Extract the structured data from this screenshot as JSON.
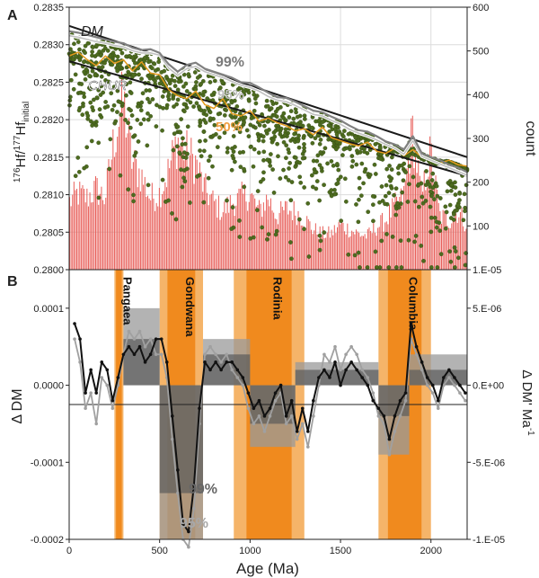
{
  "panel_a": {
    "label": "A",
    "left_ylabel_prefix": "176",
    "left_ylabel_mid": "Hf/",
    "left_ylabel_sup2": "177",
    "left_ylabel_base": "Hf",
    "left_ylabel_sub": "initial",
    "right_ylabel": "count",
    "curve_labels": {
      "dm": "DM",
      "chur": "CHUR",
      "p99": "99%",
      "p95": "95%",
      "p50": "50%"
    }
  },
  "panel_b": {
    "label": "B",
    "left_ylabel": "Δ DM",
    "right_ylabel": "Δ DM' Ma",
    "right_ylabel_sup": "-1",
    "xlabel": "Age (Ma)",
    "labels_99": "99%",
    "labels_95": "95%",
    "supercontinents": [
      {
        "name": "Pangaea",
        "start": 250,
        "end": 300
      },
      {
        "name": "Gondwana",
        "start": 500,
        "end": 740
      },
      {
        "name": "Rodinia",
        "start": 910,
        "end": 1300
      },
      {
        "name": "Columbia",
        "start": 1710,
        "end": 2000
      }
    ]
  },
  "colors": {
    "scatter": "#4d6b1f",
    "histogram": "#e85f5a",
    "histogram_dark": "#a12a2a",
    "line_99": "#808080",
    "line_95": "#c0c0c0",
    "line_50": "#e39a1c",
    "dm_chur": "#1a1a1a",
    "band_orange": "#f08a1e",
    "band_orange_light": "#f5b469"
  },
  "chart_data": [
    {
      "type": "scatter",
      "title": "",
      "xlabel": "",
      "ylabel": "176Hf/177Hf initial",
      "y2label": "count",
      "xlim": [
        0,
        2200
      ],
      "ylim": [
        0.28,
        0.2835
      ],
      "y2lim": [
        1e-05,
        600
      ],
      "y2scale": "log",
      "grid": true,
      "xticks": [
        0,
        500,
        1000,
        1500,
        2000
      ],
      "yticks": [
        "0.2800",
        "0.2805",
        "0.2810",
        "0.2815",
        "0.2820",
        "0.2825",
        "0.2830",
        "0.2835"
      ],
      "y2ticks": [
        "1.E-05",
        "100",
        "200",
        "300",
        "400",
        "500",
        "600"
      ],
      "dm_line": {
        "x": [
          0,
          2200
        ],
        "y": [
          0.28325,
          0.2815
        ]
      },
      "chur_line": {
        "x": [
          0,
          2200
        ],
        "y": [
          0.28278,
          0.28125
        ]
      },
      "series_99": {
        "x": [
          0,
          50,
          100,
          150,
          200,
          250,
          300,
          350,
          400,
          450,
          500,
          550,
          600,
          650,
          700,
          750,
          800,
          850,
          900,
          950,
          1000,
          1050,
          1100,
          1150,
          1200,
          1250,
          1300,
          1350,
          1400,
          1450,
          1500,
          1550,
          1600,
          1650,
          1700,
          1750,
          1800,
          1850,
          1900,
          1950,
          2000,
          2050,
          2100,
          2150,
          2200
        ],
        "y": [
          0.28318,
          0.28316,
          0.28313,
          0.2831,
          0.28307,
          0.28304,
          0.28302,
          0.28296,
          0.28293,
          0.28294,
          0.28289,
          0.28274,
          0.28264,
          0.28273,
          0.28276,
          0.28268,
          0.28264,
          0.2826,
          0.28256,
          0.2825,
          0.28249,
          0.28243,
          0.28236,
          0.2823,
          0.28229,
          0.28224,
          0.28218,
          0.28212,
          0.2821,
          0.28204,
          0.28199,
          0.28192,
          0.28186,
          0.28184,
          0.28178,
          0.28171,
          0.28167,
          0.2816,
          0.28178,
          0.28155,
          0.2815,
          0.28146,
          0.2814,
          0.28136,
          0.2813
        ]
      },
      "series_95": {
        "x": [
          0,
          50,
          100,
          150,
          200,
          250,
          300,
          350,
          400,
          450,
          500,
          550,
          600,
          650,
          700,
          750,
          800,
          850,
          900,
          950,
          1000,
          1050,
          1100,
          1150,
          1200,
          1250,
          1300,
          1350,
          1400,
          1450,
          1500,
          1550,
          1600,
          1650,
          1700,
          1750,
          1800,
          1850,
          1900,
          1950,
          2000,
          2050,
          2100,
          2150,
          2200
        ],
        "y": [
          0.28312,
          0.2831,
          0.28307,
          0.28304,
          0.28302,
          0.28299,
          0.28297,
          0.28292,
          0.28289,
          0.28289,
          0.28286,
          0.28269,
          0.28259,
          0.28268,
          0.28271,
          0.28264,
          0.2826,
          0.28256,
          0.28251,
          0.28246,
          0.28243,
          0.28238,
          0.28231,
          0.28226,
          0.28224,
          0.28219,
          0.28213,
          0.28207,
          0.28205,
          0.28199,
          0.28194,
          0.28187,
          0.28182,
          0.28178,
          0.28173,
          0.28167,
          0.28162,
          0.28154,
          0.28172,
          0.28151,
          0.28146,
          0.28141,
          0.28136,
          0.28131,
          0.28126
        ]
      },
      "series_50": {
        "x": [
          0,
          50,
          100,
          150,
          200,
          250,
          300,
          350,
          400,
          450,
          500,
          550,
          600,
          650,
          700,
          750,
          800,
          850,
          900,
          950,
          1000,
          1050,
          1100,
          1150,
          1200,
          1250,
          1300,
          1350,
          1400,
          1450,
          1500,
          1550,
          1600,
          1650,
          1700,
          1750,
          1800,
          1850,
          1900,
          1950,
          2000,
          2050,
          2100,
          2150,
          2200
        ],
        "y": [
          0.28285,
          0.2829,
          0.2828,
          0.28272,
          0.28285,
          0.28275,
          0.2828,
          0.28265,
          0.28277,
          0.28262,
          0.2826,
          0.2824,
          0.28232,
          0.28228,
          0.28238,
          0.2822,
          0.28215,
          0.28228,
          0.28208,
          0.28205,
          0.28212,
          0.28198,
          0.28202,
          0.28196,
          0.28192,
          0.28185,
          0.28188,
          0.2818,
          0.2819,
          0.28176,
          0.28172,
          0.28168,
          0.28165,
          0.2817,
          0.28158,
          0.28155,
          0.28162,
          0.28152,
          0.2816,
          0.2815,
          0.28145,
          0.28142,
          0.28146,
          0.2814,
          0.28138
        ]
      },
      "histogram_counts": {
        "x": [
          0,
          50,
          100,
          150,
          200,
          250,
          300,
          350,
          400,
          450,
          500,
          550,
          600,
          650,
          700,
          750,
          800,
          850,
          900,
          950,
          1000,
          1050,
          1100,
          1150,
          1200,
          1250,
          1300,
          1350,
          1400,
          1450,
          1500,
          1550,
          1600,
          1650,
          1700,
          1750,
          1800,
          1850,
          1900,
          1950,
          2000,
          2050,
          2100,
          2150,
          2200
        ],
        "y": [
          150,
          170,
          160,
          180,
          160,
          290,
          380,
          240,
          210,
          160,
          170,
          220,
          290,
          260,
          240,
          180,
          150,
          130,
          150,
          160,
          170,
          130,
          160,
          120,
          135,
          130,
          115,
          90,
          80,
          80,
          100,
          90,
          80,
          75,
          95,
          110,
          140,
          160,
          310,
          160,
          260,
          120,
          110,
          130,
          100
        ]
      }
    },
    {
      "type": "line",
      "title": "",
      "xlabel": "Age (Ma)",
      "ylabel": "Δ DM",
      "y2label": "Δ DM' Ma-1",
      "xlim": [
        0,
        2200
      ],
      "ylim": [
        -0.0002,
        0.00015
      ],
      "y2lim": [
        -1e-05,
        7.5e-06
      ],
      "xticks": [
        0,
        500,
        1000,
        1500,
        2000
      ],
      "yticks": [
        "-0.0002",
        "-0.0001",
        "0.0000",
        "0.0001"
      ],
      "y2ticks": [
        "-1.E-05",
        "-5.E-06",
        "0.E+00",
        "5.E-06"
      ],
      "series": [
        {
          "name": "99%",
          "x": [
            30,
            60,
            90,
            120,
            150,
            180,
            210,
            240,
            270,
            300,
            330,
            360,
            390,
            420,
            450,
            480,
            510,
            540,
            570,
            600,
            630,
            660,
            690,
            720,
            750,
            780,
            810,
            840,
            870,
            900,
            930,
            960,
            990,
            1020,
            1050,
            1080,
            1110,
            1140,
            1170,
            1200,
            1230,
            1260,
            1290,
            1320,
            1350,
            1380,
            1410,
            1440,
            1470,
            1500,
            1530,
            1560,
            1590,
            1620,
            1650,
            1680,
            1710,
            1740,
            1770,
            1800,
            1830,
            1860,
            1890,
            1920,
            1950,
            1980,
            2010,
            2040,
            2070,
            2100,
            2130,
            2160,
            2190
          ],
          "y": [
            8e-05,
            6e-05,
            -1e-05,
            2e-05,
            -1e-05,
            3e-05,
            2e-05,
            -2e-05,
            1e-05,
            4e-05,
            5e-05,
            4e-05,
            5e-05,
            3e-05,
            4e-05,
            6e-05,
            6e-05,
            3e-05,
            -4e-05,
            -0.00011,
            -0.00018,
            -0.00019,
            -0.00013,
            -3e-05,
            3e-05,
            2e-05,
            3e-05,
            2e-05,
            3e-05,
            3e-05,
            2e-05,
            1e-05,
            -1e-05,
            -3e-05,
            -2e-05,
            -4e-05,
            -3e-05,
            -1e-05,
            0,
            -4e-05,
            -2e-05,
            -6e-05,
            -3e-05,
            -6e-05,
            -2e-05,
            1e-05,
            2e-05,
            1e-05,
            3e-05,
            0,
            2e-05,
            3e-05,
            2e-05,
            1e-05,
            0,
            -2e-05,
            -3e-05,
            -4e-05,
            -7e-05,
            -4e-05,
            -2e-05,
            -1e-05,
            8e-05,
            5e-05,
            3e-05,
            1e-05,
            0,
            -2e-05,
            1e-05,
            2e-05,
            1e-05,
            0,
            -1e-05
          ]
        },
        {
          "name": "95%",
          "x": [
            30,
            60,
            90,
            120,
            150,
            180,
            210,
            240,
            270,
            300,
            330,
            360,
            390,
            420,
            450,
            480,
            510,
            540,
            570,
            600,
            630,
            660,
            690,
            720,
            750,
            780,
            810,
            840,
            870,
            900,
            930,
            960,
            990,
            1020,
            1050,
            1080,
            1110,
            1140,
            1170,
            1200,
            1230,
            1260,
            1290,
            1320,
            1350,
            1380,
            1410,
            1440,
            1470,
            1500,
            1530,
            1560,
            1590,
            1620,
            1650,
            1680,
            1710,
            1740,
            1770,
            1800,
            1830,
            1860,
            1890,
            1920,
            1950,
            1980,
            2010,
            2040,
            2070,
            2100,
            2130,
            2160,
            2190
          ],
          "y": [
            6e-05,
            3e-05,
            -3e-05,
            -1e-05,
            -5e-05,
            1e-05,
            0,
            -3e-05,
            0,
            4e-05,
            7e-05,
            6e-05,
            7e-05,
            5e-05,
            6e-05,
            4e-05,
            4e-05,
            1e-05,
            -7e-05,
            -0.00014,
            -0.0002,
            -0.00021,
            -0.00016,
            -5e-05,
            4e-05,
            5e-05,
            4e-05,
            3e-05,
            4e-05,
            2e-05,
            1e-05,
            0,
            -3e-05,
            -5e-05,
            -4e-05,
            -6e-05,
            -4e-05,
            -2e-05,
            -1e-05,
            -5e-05,
            -4e-05,
            -7e-05,
            -5e-05,
            -8e-05,
            -4e-05,
            0,
            4e-05,
            3e-05,
            5e-05,
            2e-05,
            4e-05,
            5e-05,
            4e-05,
            2e-05,
            1e-05,
            -1e-05,
            -4e-05,
            -5e-05,
            -9e-05,
            -6e-05,
            -4e-05,
            -2e-05,
            6e-05,
            4e-05,
            2e-05,
            0,
            -1e-05,
            -3e-05,
            0,
            1e-05,
            0,
            -1e-05,
            -2e-05
          ]
        }
      ],
      "mean_boxes_99": [
        {
          "start": 300,
          "end": 500,
          "value": 6e-05
        },
        {
          "start": 500,
          "end": 740,
          "value": -0.00014
        },
        {
          "start": 740,
          "end": 1000,
          "value": 4e-05
        },
        {
          "start": 1000,
          "end": 1250,
          "value": -5e-05
        },
        {
          "start": 1250,
          "end": 1710,
          "value": 2e-05
        },
        {
          "start": 1710,
          "end": 1880,
          "value": -4e-05
        },
        {
          "start": 1880,
          "end": 2200,
          "value": 2e-05
        }
      ],
      "mean_boxes_95": [
        {
          "start": 300,
          "end": 500,
          "value": 0.0001
        },
        {
          "start": 500,
          "end": 740,
          "value": -0.0002
        },
        {
          "start": 740,
          "end": 1000,
          "value": 6e-05
        },
        {
          "start": 1000,
          "end": 1250,
          "value": -8e-05
        },
        {
          "start": 1250,
          "end": 1710,
          "value": 3e-05
        },
        {
          "start": 1710,
          "end": 1880,
          "value": -9e-05
        },
        {
          "start": 1880,
          "end": 2200,
          "value": 4e-05
        }
      ]
    }
  ]
}
